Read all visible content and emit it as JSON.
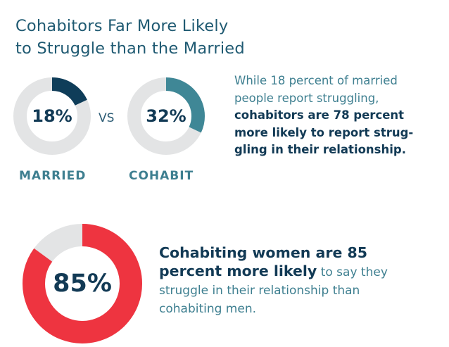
{
  "title": {
    "line1": "Cohabitors Far More Likely",
    "line2": "to Struggle than the Married"
  },
  "vs_label": "VS",
  "chart_data": [
    {
      "type": "pie",
      "variant": "donut",
      "label": "MARRIED",
      "value": 18,
      "value_label": "18%",
      "color": "#0f3d59",
      "track_color": "#e3e4e5"
    },
    {
      "type": "pie",
      "variant": "donut",
      "label": "COHABIT",
      "value": 32,
      "value_label": "32%",
      "color": "#3f8796",
      "track_color": "#e3e4e5"
    },
    {
      "type": "pie",
      "variant": "donut",
      "label": "",
      "value": 85,
      "value_label": "85%",
      "color": "#ee3440",
      "track_color": "#e3e4e5"
    }
  ],
  "paragraph1": {
    "line1": "While 18 percent of married",
    "line2": "people report struggling,",
    "line3": "cohabitors are 78 percent",
    "line4": "more likely to report strug-",
    "line5": "gling in their relationship."
  },
  "paragraph2": {
    "line1": "Cohabiting women are 85",
    "line2_bold": "percent more likely",
    "line2_rest": " to say they",
    "line3": "struggle in their relationship than",
    "line4": "cohabiting men."
  }
}
